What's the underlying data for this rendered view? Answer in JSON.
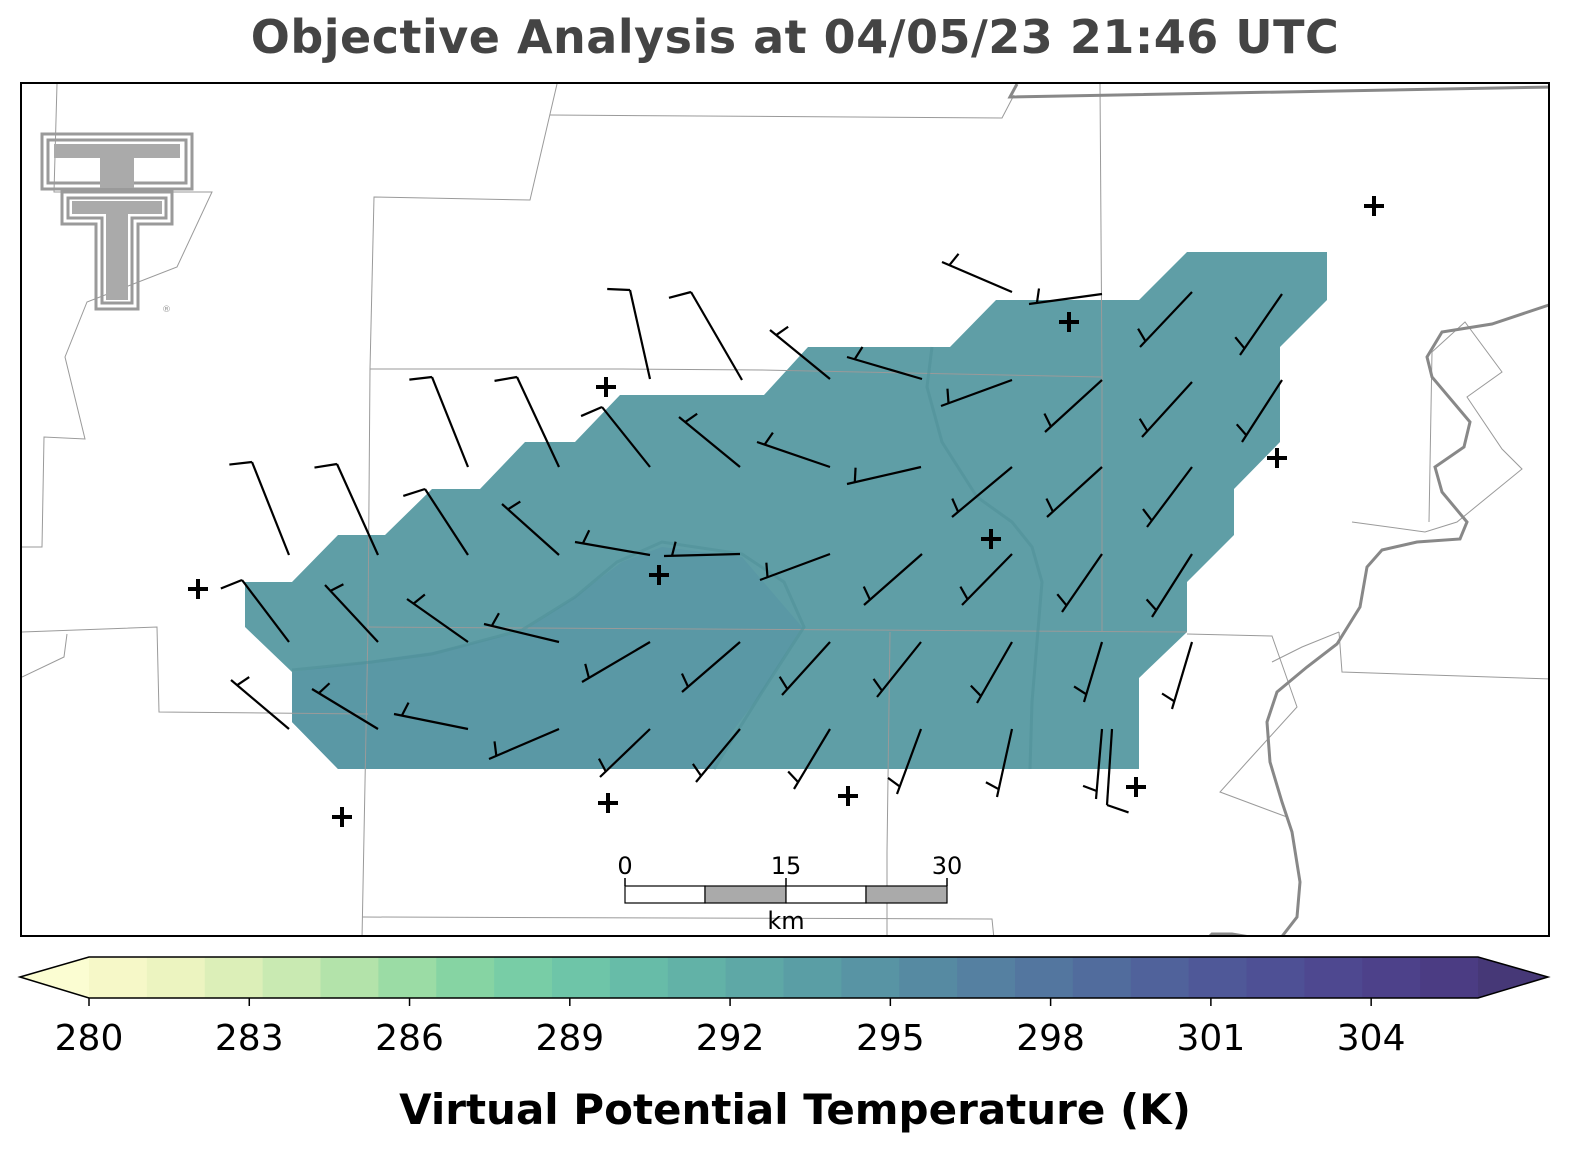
{
  "title": "Objective Analysis at 04/05/23 21:46 UTC",
  "logo": {
    "name": "texas-tech-double-t-logo",
    "color": "#999999"
  },
  "colors": {
    "field_fill": "#5f9ea6",
    "field_fill_dark": "#5a98a5",
    "county_lines": "#9a9a9a",
    "state_border": "#888888",
    "barbs": "#000000",
    "stations": "#000000"
  },
  "scale_bar": {
    "labels": [
      "0",
      "15",
      "30"
    ],
    "unit": "km"
  },
  "colorbar": {
    "title": "Virtual Potential Temperature (K)",
    "tick_labels": [
      "280",
      "283",
      "286",
      "289",
      "292",
      "295",
      "298",
      "301",
      "304"
    ],
    "range": [
      280,
      306
    ],
    "extend": "both",
    "colormap": "crest-like (pale yellow to dark indigo)",
    "colors": [
      "#f6f8c8",
      "#ecf4c0",
      "#dcefb8",
      "#c9eab2",
      "#b3e3aa",
      "#9bdca5",
      "#86d4a3",
      "#78cda6",
      "#6ec5a8",
      "#67bca8",
      "#62b2a7",
      "#5ea8a6",
      "#5a9ea5",
      "#5894a4",
      "#568aa2",
      "#5580a1",
      "#53769f",
      "#516c9d",
      "#50629b",
      "#4f5898",
      "#4e5095",
      "#4e4890",
      "#4d418a",
      "#4b3c83"
    ],
    "under_color": "#fbfdd2",
    "over_color": "#463877"
  },
  "map": {
    "analysis_field_value_k": 294,
    "station_markers": 12,
    "wind_barbs_units": "kt"
  }
}
